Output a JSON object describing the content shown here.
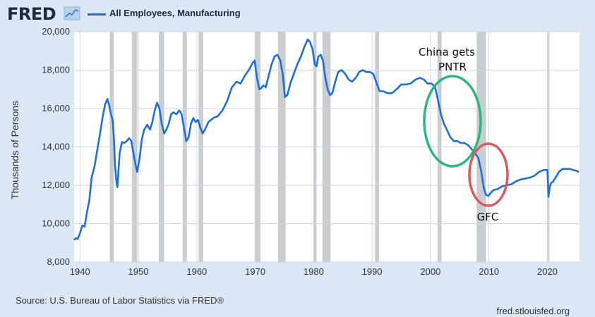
{
  "header": {
    "logo_text": "FRED",
    "logo_icon": "trend-line-icon"
  },
  "colors": {
    "background": "#dbe7f5",
    "plot_bg": "#ffffff",
    "grid": "#cfd6de",
    "line": "#1f6fd8",
    "recession": "#c8cdd2",
    "china_circle": "#2cb67d",
    "gfc_circle": "#d9595f"
  },
  "annotations": {
    "china": [
      "China gets",
      "PNTR"
    ],
    "gfc": "GFC"
  },
  "footer": {
    "source": "Source: U.S. Bureau of Labor Statistics via FRED®",
    "site": "fred.stlouisfed.org"
  },
  "chart_data": {
    "type": "line",
    "ylabel": "Thousands of Persons",
    "xlabel": "",
    "xlim": [
      1939,
      2025.5
    ],
    "ylim": [
      8000,
      20000
    ],
    "yticks": [
      8000,
      10000,
      12000,
      14000,
      16000,
      18000,
      20000
    ],
    "ytick_labels": [
      "8,000",
      "10,000",
      "12,000",
      "14,000",
      "16,000",
      "18,000",
      "20,000"
    ],
    "xticks": [
      1940,
      1950,
      1960,
      1970,
      1980,
      1990,
      2000,
      2010,
      2020
    ],
    "xtick_labels": [
      "1940",
      "1950",
      "1960",
      "1970",
      "1980",
      "1990",
      "2000",
      "2010",
      "2020"
    ],
    "grid": true,
    "legend": "top-left",
    "recessions": [
      [
        1945.1,
        1945.8
      ],
      [
        1948.9,
        1949.8
      ],
      [
        1953.5,
        1954.4
      ],
      [
        1957.6,
        1958.3
      ],
      [
        1960.3,
        1961.1
      ],
      [
        1969.9,
        1970.9
      ],
      [
        1973.9,
        1975.2
      ],
      [
        1980.0,
        1980.5
      ],
      [
        1981.5,
        1982.9
      ],
      [
        1990.5,
        1991.2
      ],
      [
        2001.2,
        2001.9
      ],
      [
        2007.9,
        2009.5
      ],
      [
        2020.1,
        2020.3
      ]
    ],
    "series": [
      {
        "name": "All Employees, Manufacturing",
        "x": [
          1939.0,
          1939.3,
          1939.6,
          1940.0,
          1940.4,
          1940.8,
          1941.2,
          1941.6,
          1942.0,
          1942.5,
          1943.0,
          1943.5,
          1943.9,
          1944.3,
          1944.7,
          1945.0,
          1945.3,
          1945.6,
          1945.8,
          1946.0,
          1946.2,
          1946.4,
          1946.8,
          1947.2,
          1947.6,
          1948.0,
          1948.4,
          1948.8,
          1949.2,
          1949.5,
          1949.8,
          1950.2,
          1950.6,
          1951.0,
          1951.5,
          1952.0,
          1952.4,
          1952.8,
          1953.2,
          1953.6,
          1954.0,
          1954.4,
          1954.8,
          1955.2,
          1955.6,
          1956.0,
          1956.5,
          1957.0,
          1957.4,
          1957.8,
          1958.2,
          1958.6,
          1959.0,
          1959.4,
          1959.8,
          1960.2,
          1960.6,
          1961.0,
          1961.4,
          1962.0,
          1962.8,
          1963.6,
          1964.4,
          1965.2,
          1966.0,
          1966.8,
          1967.5,
          1968.2,
          1968.9,
          1969.5,
          1969.9,
          1970.3,
          1970.7,
          1971.0,
          1971.4,
          1971.8,
          1972.3,
          1972.8,
          1973.3,
          1973.8,
          1974.3,
          1974.7,
          1975.1,
          1975.5,
          1976.0,
          1976.6,
          1977.2,
          1977.8,
          1978.4,
          1979.0,
          1979.4,
          1979.8,
          1980.2,
          1980.5,
          1980.8,
          1981.2,
          1981.6,
          1982.0,
          1982.4,
          1982.8,
          1983.2,
          1983.7,
          1984.2,
          1984.8,
          1985.4,
          1986.0,
          1986.6,
          1987.2,
          1987.8,
          1988.4,
          1989.0,
          1989.6,
          1990.2,
          1990.8,
          1991.3,
          1991.9,
          1992.6,
          1993.4,
          1994.2,
          1995.0,
          1995.8,
          1996.6,
          1997.4,
          1998.2,
          1998.9,
          1999.5,
          2000.2,
          2000.8,
          2001.3,
          2001.8,
          2002.3,
          2002.8,
          2003.4,
          2004.0,
          2004.6,
          2005.2,
          2005.8,
          2006.4,
          2007.0,
          2007.6,
          2008.2,
          2008.7,
          2009.1,
          2009.5,
          2009.9,
          2010.3,
          2010.8,
          2011.5,
          2012.3,
          2013.0,
          2013.8,
          2014.6,
          2015.4,
          2016.2,
          2017.0,
          2017.8,
          2018.6,
          2019.4,
          2020.0,
          2020.2,
          2020.4,
          2020.6,
          2021.0,
          2021.5,
          2022.0,
          2022.6,
          2023.2,
          2023.8,
          2024.4,
          2025.0,
          2025.4
        ],
        "values": [
          9150,
          9250,
          9200,
          9500,
          9900,
          9850,
          10600,
          11200,
          12400,
          13000,
          13900,
          14800,
          15600,
          16200,
          16500,
          16150,
          15700,
          15400,
          14500,
          13100,
          12300,
          11900,
          13700,
          14250,
          14200,
          14300,
          14450,
          14300,
          13600,
          13100,
          12700,
          13400,
          14400,
          14900,
          15150,
          14900,
          15300,
          15900,
          16300,
          16000,
          15200,
          14700,
          14900,
          15200,
          15700,
          15800,
          15700,
          15900,
          15700,
          15000,
          14300,
          14500,
          15200,
          15500,
          15300,
          15400,
          15000,
          14700,
          14900,
          15300,
          15500,
          15600,
          15900,
          16400,
          17100,
          17400,
          17300,
          17700,
          18000,
          18350,
          18500,
          17600,
          17000,
          17050,
          17200,
          17100,
          17700,
          18300,
          18700,
          18800,
          18500,
          17800,
          16600,
          16700,
          17300,
          17800,
          18300,
          18700,
          19200,
          19600,
          19450,
          19100,
          18300,
          18200,
          18700,
          18800,
          18500,
          17600,
          17000,
          16700,
          16800,
          17400,
          17900,
          18000,
          17800,
          17500,
          17400,
          17600,
          17900,
          18000,
          17900,
          17900,
          17800,
          17300,
          16900,
          16900,
          16800,
          16800,
          17000,
          17250,
          17250,
          17300,
          17500,
          17600,
          17500,
          17300,
          17300,
          17100,
          16400,
          15700,
          15200,
          14900,
          14500,
          14300,
          14300,
          14200,
          14200,
          14100,
          13900,
          13700,
          13400,
          12700,
          11900,
          11500,
          11450,
          11600,
          11750,
          11800,
          11950,
          12000,
          12050,
          12200,
          12300,
          12350,
          12400,
          12500,
          12700,
          12800,
          12800,
          11400,
          11900,
          12100,
          12200,
          12450,
          12700,
          12850,
          12850,
          12850,
          12800,
          12750,
          12700
        ]
      }
    ]
  }
}
